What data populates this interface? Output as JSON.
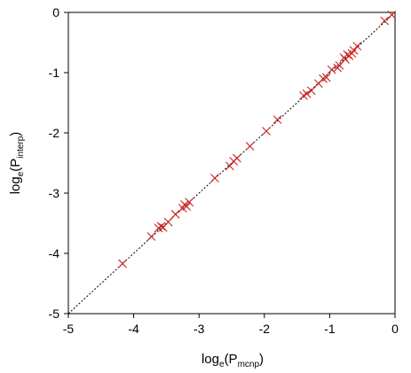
{
  "chart_data": {
    "type": "scatter",
    "xlabel": {
      "prefix": "log",
      "base": "e",
      "open": "(P",
      "sub": "mcnp",
      "close": ")"
    },
    "ylabel": {
      "prefix": "log",
      "base": "e",
      "open": "(P",
      "sub": "interp",
      "close": ")"
    },
    "xlim": [
      -5,
      0
    ],
    "ylim": [
      -5,
      0
    ],
    "x_ticks": [
      -5,
      -4,
      -3,
      -2,
      -1,
      0
    ],
    "y_ticks": [
      -5,
      -4,
      -3,
      -2,
      -1,
      0
    ],
    "x_tick_labels": [
      "-5",
      "-4",
      "-3",
      "-2",
      "-1",
      "0"
    ],
    "y_tick_labels": [
      "-5",
      "-4",
      "-3",
      "-2",
      "-1",
      "0"
    ],
    "grid": false,
    "reference_line": {
      "style": "dashed",
      "color": "#000000",
      "from": [
        -5,
        -5
      ],
      "to": [
        0,
        0
      ]
    },
    "marker": {
      "shape": "x",
      "color": "#cc2222"
    },
    "points": [
      [
        -4.17,
        -4.17
      ],
      [
        -3.73,
        -3.72
      ],
      [
        -3.62,
        -3.58
      ],
      [
        -3.58,
        -3.55
      ],
      [
        -3.55,
        -3.57
      ],
      [
        -3.47,
        -3.48
      ],
      [
        -3.36,
        -3.35
      ],
      [
        -3.25,
        -3.25
      ],
      [
        -3.22,
        -3.19
      ],
      [
        -3.19,
        -3.22
      ],
      [
        -3.15,
        -3.15
      ],
      [
        -2.76,
        -2.75
      ],
      [
        -2.53,
        -2.55
      ],
      [
        -2.47,
        -2.47
      ],
      [
        -2.42,
        -2.42
      ],
      [
        -2.22,
        -2.22
      ],
      [
        -1.97,
        -1.97
      ],
      [
        -1.8,
        -1.78
      ],
      [
        -1.4,
        -1.38
      ],
      [
        -1.35,
        -1.35
      ],
      [
        -1.28,
        -1.3
      ],
      [
        -1.17,
        -1.18
      ],
      [
        -1.1,
        -1.1
      ],
      [
        -1.05,
        -1.08
      ],
      [
        -0.97,
        -0.95
      ],
      [
        -0.88,
        -0.92
      ],
      [
        -0.85,
        -0.88
      ],
      [
        -0.78,
        -0.75
      ],
      [
        -0.76,
        -0.78
      ],
      [
        -0.73,
        -0.7
      ],
      [
        -0.7,
        -0.72
      ],
      [
        -0.66,
        -0.68
      ],
      [
        -0.63,
        -0.63
      ],
      [
        -0.58,
        -0.56
      ],
      [
        -0.16,
        -0.14
      ],
      [
        -0.05,
        -0.04
      ]
    ]
  }
}
